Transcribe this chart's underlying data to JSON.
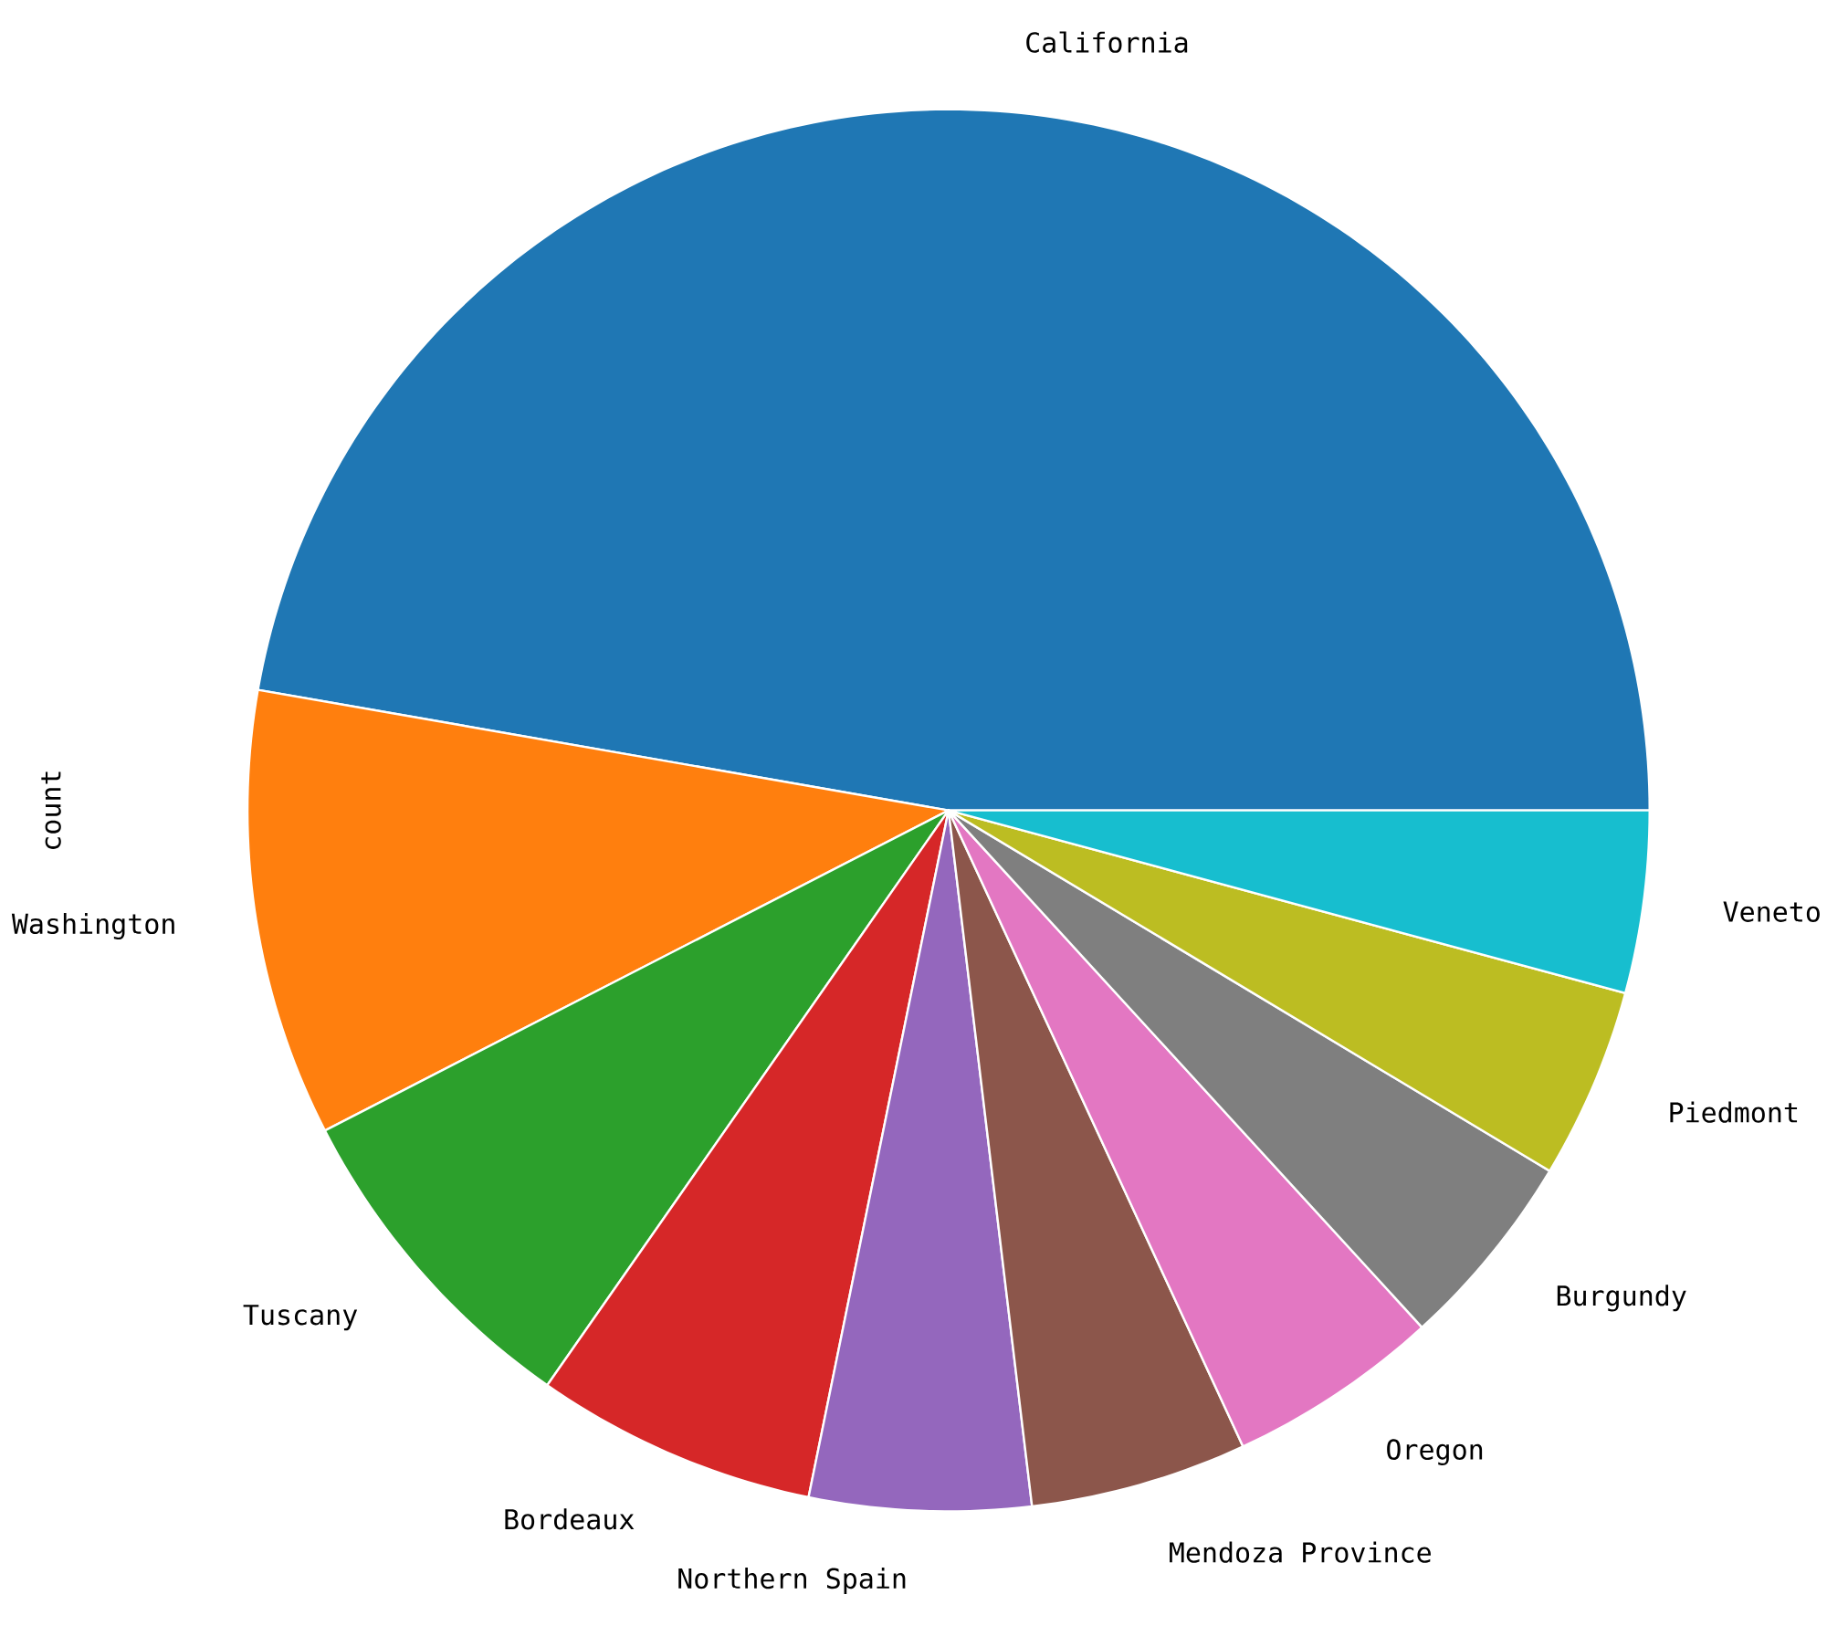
{
  "chart_data": {
    "type": "pie",
    "ylabel": "count",
    "categories": [
      "California",
      "Washington",
      "Tuscany",
      "Bordeaux",
      "Northern Spain",
      "Mendoza Province",
      "Oregon",
      "Burgundy",
      "Piedmont",
      "Veneto"
    ],
    "values": [
      47.25,
      10.3,
      7.75,
      6.5,
      5.1,
      5.0,
      4.9,
      4.6,
      4.4,
      4.2
    ],
    "colors": [
      "#1f77b4",
      "#ff7f0e",
      "#2ca02c",
      "#d62728",
      "#9467bd",
      "#8c564b",
      "#e377c2",
      "#7f7f7f",
      "#bcbd22",
      "#17becf"
    ]
  }
}
